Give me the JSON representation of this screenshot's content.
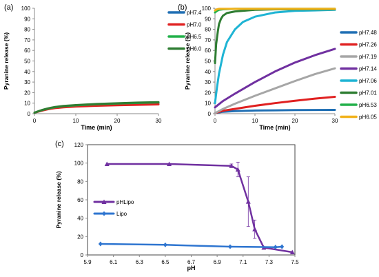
{
  "chart_data": [
    {
      "panel_label": "(a)",
      "type": "line",
      "xlabel": "Time (min)",
      "ylabel": "Pyranine release (%)",
      "xlim": [
        0,
        30
      ],
      "ylim": [
        0,
        100
      ],
      "xticks": [
        "0",
        "10",
        "20",
        "30"
      ],
      "yticks": [
        "0",
        "10",
        "20",
        "30",
        "40",
        "50",
        "60",
        "70",
        "80",
        "90",
        "100"
      ],
      "grid": false,
      "legend_position": "right",
      "series": [
        {
          "name": "pH7.4",
          "color": "#1f6fb4",
          "x": [
            0,
            1,
            2,
            3,
            4,
            5,
            7,
            10,
            15,
            20,
            25,
            30
          ],
          "y": [
            1,
            2.2,
            3.4,
            4.4,
            5.2,
            5.9,
            6.8,
            7.5,
            8.4,
            9,
            9.6,
            10
          ]
        },
        {
          "name": "pH7.0",
          "color": "#e02020",
          "x": [
            0,
            1,
            2,
            3,
            4,
            5,
            7,
            10,
            15,
            20,
            25,
            30
          ],
          "y": [
            1,
            2,
            3.1,
            4,
            4.7,
            5.3,
            6.1,
            6.8,
            7.5,
            8,
            8.4,
            8.8
          ]
        },
        {
          "name": "pH6.5",
          "color": "#22b04a",
          "x": [
            0,
            1,
            2,
            3,
            4,
            5,
            7,
            10,
            15,
            20,
            25,
            30
          ],
          "y": [
            1,
            2.3,
            3.5,
            4.6,
            5.4,
            6.1,
            7.1,
            7.9,
            8.9,
            9.6,
            10.2,
            10.7
          ]
        },
        {
          "name": "pH6.0",
          "color": "#2e7d32",
          "x": [
            0,
            1,
            2,
            3,
            4,
            5,
            7,
            10,
            15,
            20,
            25,
            30
          ],
          "y": [
            1,
            2.4,
            3.7,
            4.8,
            5.7,
            6.4,
            7.4,
            8.2,
            9.2,
            9.9,
            10.5,
            11
          ]
        }
      ]
    },
    {
      "panel_label": "(b)",
      "type": "line",
      "xlabel": "Time (min)",
      "ylabel": "Pyranine release (%)",
      "xlim": [
        0,
        30
      ],
      "ylim": [
        0,
        100
      ],
      "xticks": [
        "0",
        "10",
        "20",
        "30"
      ],
      "yticks": [
        "0",
        "10",
        "20",
        "30",
        "40",
        "50",
        "60",
        "70",
        "80",
        "90",
        "100"
      ],
      "grid": false,
      "legend_position": "right",
      "series": [
        {
          "name": "pH7.48",
          "color": "#1f6fb4",
          "x": [
            0,
            1,
            2,
            5,
            10,
            15,
            20,
            25,
            30
          ],
          "y": [
            0.5,
            1.2,
            1.8,
            2.5,
            3,
            3.2,
            3.4,
            3.5,
            3.6
          ]
        },
        {
          "name": "pH7.26",
          "color": "#e02020",
          "x": [
            0,
            1,
            2,
            5,
            10,
            15,
            20,
            25,
            30
          ],
          "y": [
            0.5,
            1.7,
            2.8,
            4.6,
            7.5,
            10,
            12.3,
            14.3,
            16
          ]
        },
        {
          "name": "pH7.19",
          "color": "#a6a6a6",
          "x": [
            0,
            1,
            2,
            5,
            10,
            15,
            20,
            25,
            30
          ],
          "y": [
            0.5,
            2.5,
            4.5,
            9.5,
            17,
            24,
            31,
            37.5,
            43
          ]
        },
        {
          "name": "pH7.14",
          "color": "#7030a0",
          "x": [
            0,
            1,
            2,
            5,
            10,
            15,
            20,
            25,
            30
          ],
          "y": [
            6,
            9,
            12,
            19,
            30,
            40,
            48.5,
            55.5,
            61.5
          ]
        },
        {
          "name": "pH7.06",
          "color": "#1fb4d4",
          "x": [
            0,
            0.5,
            1,
            2,
            3,
            5,
            7,
            10,
            15,
            20,
            25,
            30
          ],
          "y": [
            10,
            25,
            38,
            56,
            68,
            80,
            87,
            92,
            96,
            97.5,
            98,
            98.5
          ]
        },
        {
          "name": "pH7.01",
          "color": "#2e7d32",
          "x": [
            0,
            0.3,
            0.7,
            1,
            1.5,
            2,
            3,
            5,
            10,
            15,
            20,
            25,
            30
          ],
          "y": [
            48,
            66,
            78,
            85,
            90,
            93,
            95.5,
            97,
            98.5,
            99,
            99,
            99,
            99
          ]
        },
        {
          "name": "pH6.53",
          "color": "#22b04a",
          "x": [
            0,
            0.5,
            1,
            2,
            5,
            10,
            20,
            30
          ],
          "y": [
            96,
            97.5,
            98.5,
            99,
            99.5,
            99.5,
            99.5,
            99.5
          ]
        },
        {
          "name": "pH6.05",
          "color": "#f2b21b",
          "x": [
            0,
            0.5,
            1,
            2,
            5,
            10,
            20,
            30
          ],
          "y": [
            98,
            99,
            99.5,
            99.5,
            99.5,
            99.5,
            99.5,
            99.5
          ]
        }
      ]
    },
    {
      "panel_label": "(c)",
      "type": "line",
      "xlabel": "pH",
      "ylabel": "Pyranine release (%)",
      "xlim": [
        5.9,
        7.5
      ],
      "ylim": [
        0,
        120
      ],
      "xticks": [
        "5.9",
        "6.1",
        "6.3",
        "6.5",
        "6.7",
        "6.9",
        "7.1",
        "7.3",
        "7.5"
      ],
      "yticks": [
        "0",
        "20",
        "40",
        "60",
        "80",
        "100",
        "120"
      ],
      "grid": false,
      "legend_position": "left",
      "series": [
        {
          "name": "pHLipo",
          "color": "#7030a0",
          "marker": "triangle",
          "x": [
            6.05,
            6.53,
            7.01,
            7.06,
            7.14,
            7.19,
            7.26,
            7.48
          ],
          "y": [
            99,
            99,
            97,
            93,
            58,
            28,
            8,
            3
          ],
          "err": [
            0,
            0,
            2,
            8,
            27,
            10,
            0,
            0
          ]
        },
        {
          "name": "Lipo",
          "color": "#2e75d0",
          "marker": "diamond",
          "x": [
            6.0,
            6.5,
            7.0,
            7.35,
            7.4
          ],
          "y": [
            12,
            11,
            9,
            8.5,
            9
          ],
          "err": [
            0,
            0,
            0,
            0,
            0
          ]
        }
      ]
    }
  ]
}
